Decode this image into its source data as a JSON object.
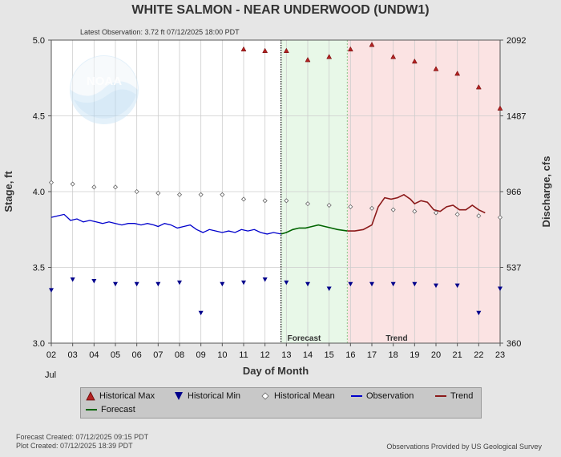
{
  "header": {
    "title": "WHITE SALMON - NEAR UNDERWOOD  (UNDW1)",
    "latest_observation": "Latest Observation: 3.72 ft 07/12/2025 18:00 PDT"
  },
  "footer": {
    "forecast_created": "Forecast Created: 07/12/2025 09:15 PDT",
    "plot_created": "Plot Created: 07/12/2025 18:39 PDT",
    "source": "Observations Provided by US Geological Survey"
  },
  "legend": {
    "max": "Historical Max",
    "min": "Historical Min",
    "mean": "Historical Mean",
    "observation": "Observation",
    "trend": "Trend",
    "forecast": "Forecast"
  },
  "colors": {
    "observation": "#0000cc",
    "forecast": "#006400",
    "trend": "#8b1a1a",
    "max": "#b22222",
    "min": "#00008b",
    "forecast_region": "#e8f8e8",
    "trend_region": "#fbe3e3"
  },
  "chart_data": {
    "type": "line",
    "title": "WHITE SALMON - NEAR UNDERWOOD  (UNDW1)",
    "xlabel": "Day of Month",
    "ylabel": "Stage, ft",
    "y2label": "Discharge, cfs",
    "x_month_label": "Jul",
    "xlim": [
      2,
      23
    ],
    "ylim": [
      3.0,
      5.0
    ],
    "x_ticks": [
      "02",
      "03",
      "04",
      "05",
      "06",
      "07",
      "08",
      "09",
      "10",
      "11",
      "12",
      "13",
      "14",
      "15",
      "16",
      "17",
      "18",
      "19",
      "20",
      "21",
      "22",
      "23"
    ],
    "y_ticks": [
      "3.0",
      "3.5",
      "4.0",
      "4.5",
      "5.0"
    ],
    "y2_ticks": [
      "360",
      "537",
      "966",
      "1487",
      "2092"
    ],
    "region_labels": {
      "forecast": "Forecast",
      "trend": "Trend"
    },
    "regions": {
      "now": 12.75,
      "forecast_start": 12.75,
      "forecast_end": 15.85,
      "trend_end": 23
    },
    "historical_max": [
      [
        11,
        4.94
      ],
      [
        12,
        4.93
      ],
      [
        13,
        4.93
      ],
      [
        14,
        4.87
      ],
      [
        15,
        4.89
      ],
      [
        16,
        4.94
      ],
      [
        17,
        4.97
      ],
      [
        18,
        4.89
      ],
      [
        19,
        4.86
      ],
      [
        20,
        4.81
      ],
      [
        21,
        4.78
      ],
      [
        22,
        4.69
      ],
      [
        23,
        4.55
      ]
    ],
    "historical_min": [
      [
        2,
        3.35
      ],
      [
        3,
        3.42
      ],
      [
        4,
        3.41
      ],
      [
        5,
        3.39
      ],
      [
        6,
        3.39
      ],
      [
        7,
        3.39
      ],
      [
        8,
        3.4
      ],
      [
        9,
        3.2
      ],
      [
        10,
        3.39
      ],
      [
        11,
        3.4
      ],
      [
        12,
        3.42
      ],
      [
        13,
        3.4
      ],
      [
        14,
        3.39
      ],
      [
        15,
        3.36
      ],
      [
        16,
        3.39
      ],
      [
        17,
        3.39
      ],
      [
        18,
        3.39
      ],
      [
        19,
        3.39
      ],
      [
        20,
        3.38
      ],
      [
        21,
        3.38
      ],
      [
        22,
        3.2
      ],
      [
        23,
        3.36
      ]
    ],
    "historical_mean": [
      [
        2,
        4.06
      ],
      [
        3,
        4.05
      ],
      [
        4,
        4.03
      ],
      [
        5,
        4.03
      ],
      [
        6,
        4.0
      ],
      [
        7,
        3.99
      ],
      [
        8,
        3.98
      ],
      [
        9,
        3.98
      ],
      [
        10,
        3.98
      ],
      [
        11,
        3.95
      ],
      [
        12,
        3.94
      ],
      [
        13,
        3.94
      ],
      [
        14,
        3.92
      ],
      [
        15,
        3.91
      ],
      [
        16,
        3.9
      ],
      [
        17,
        3.89
      ],
      [
        18,
        3.88
      ],
      [
        19,
        3.87
      ],
      [
        20,
        3.86
      ],
      [
        21,
        3.85
      ],
      [
        22,
        3.84
      ],
      [
        23,
        3.83
      ]
    ],
    "observation": [
      [
        2.0,
        3.83
      ],
      [
        2.3,
        3.84
      ],
      [
        2.6,
        3.85
      ],
      [
        2.9,
        3.81
      ],
      [
        3.2,
        3.82
      ],
      [
        3.5,
        3.8
      ],
      [
        3.8,
        3.81
      ],
      [
        4.1,
        3.8
      ],
      [
        4.4,
        3.79
      ],
      [
        4.7,
        3.8
      ],
      [
        5.0,
        3.79
      ],
      [
        5.3,
        3.78
      ],
      [
        5.6,
        3.79
      ],
      [
        5.9,
        3.79
      ],
      [
        6.2,
        3.78
      ],
      [
        6.5,
        3.79
      ],
      [
        6.8,
        3.78
      ],
      [
        7.0,
        3.77
      ],
      [
        7.3,
        3.79
      ],
      [
        7.6,
        3.78
      ],
      [
        7.9,
        3.76
      ],
      [
        8.2,
        3.77
      ],
      [
        8.5,
        3.78
      ],
      [
        8.8,
        3.75
      ],
      [
        9.1,
        3.73
      ],
      [
        9.4,
        3.75
      ],
      [
        9.7,
        3.74
      ],
      [
        10.0,
        3.73
      ],
      [
        10.3,
        3.74
      ],
      [
        10.6,
        3.73
      ],
      [
        10.9,
        3.75
      ],
      [
        11.2,
        3.74
      ],
      [
        11.5,
        3.75
      ],
      [
        11.8,
        3.73
      ],
      [
        12.1,
        3.72
      ],
      [
        12.4,
        3.73
      ],
      [
        12.75,
        3.72
      ]
    ],
    "forecast": [
      [
        12.75,
        3.72
      ],
      [
        13.0,
        3.73
      ],
      [
        13.3,
        3.75
      ],
      [
        13.6,
        3.76
      ],
      [
        13.9,
        3.76
      ],
      [
        14.2,
        3.77
      ],
      [
        14.5,
        3.78
      ],
      [
        14.8,
        3.77
      ],
      [
        15.1,
        3.76
      ],
      [
        15.4,
        3.75
      ],
      [
        15.85,
        3.74
      ]
    ],
    "trend": [
      [
        15.85,
        3.74
      ],
      [
        16.2,
        3.74
      ],
      [
        16.6,
        3.75
      ],
      [
        17.0,
        3.78
      ],
      [
        17.3,
        3.9
      ],
      [
        17.6,
        3.96
      ],
      [
        17.9,
        3.95
      ],
      [
        18.2,
        3.96
      ],
      [
        18.5,
        3.98
      ],
      [
        18.8,
        3.95
      ],
      [
        19.0,
        3.92
      ],
      [
        19.3,
        3.94
      ],
      [
        19.6,
        3.93
      ],
      [
        19.9,
        3.88
      ],
      [
        20.2,
        3.87
      ],
      [
        20.5,
        3.9
      ],
      [
        20.8,
        3.91
      ],
      [
        21.1,
        3.88
      ],
      [
        21.4,
        3.88
      ],
      [
        21.7,
        3.91
      ],
      [
        22.0,
        3.88
      ],
      [
        22.3,
        3.86
      ]
    ]
  }
}
